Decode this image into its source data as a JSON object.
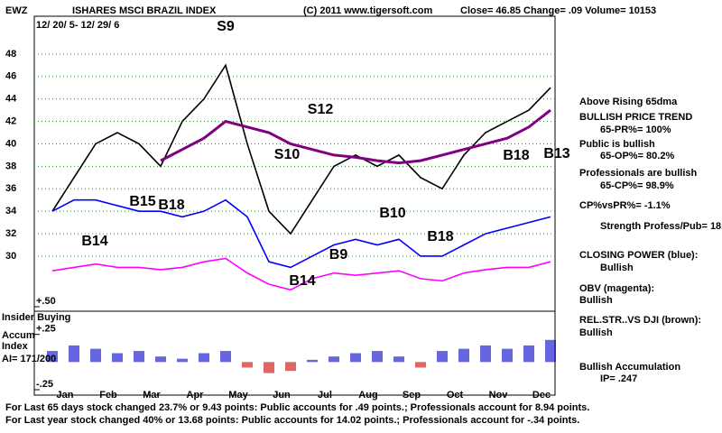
{
  "chart_data": {
    "type": "line",
    "symbol": "EWZ",
    "title": "ISHARES MSCI BRAZIL INDEX",
    "subtitle": "12/ 20/ 5- 12/ 29/ 6",
    "copyright": "(C) 2011 www.tigersoft.com",
    "quote": "Close=  46.85  Change= .09 Volume= 10153",
    "categories": [
      "Jan",
      null,
      "Feb",
      null,
      "Mar",
      null,
      "Apr",
      null,
      "May",
      null,
      "Jun",
      null,
      "Jul",
      null,
      "Aug",
      null,
      "Sep",
      null,
      "Oct",
      null,
      "Nov",
      null,
      "Dec",
      null
    ],
    "ylim": [
      25.5,
      51.2
    ],
    "yticks": [
      30,
      32,
      34,
      36,
      38,
      40,
      42,
      44,
      46,
      48
    ],
    "y2lim": [
      -0.25,
      0.5
    ],
    "y2ticks": [
      {
        "value": 0.5,
        "label": "+.50"
      },
      {
        "value": 0.25,
        "label": "+.25"
      },
      {
        "value": -0.25,
        "label": "-.25"
      }
    ],
    "grid": true,
    "series": [
      {
        "name": "Price",
        "color": "#000000",
        "values": [
          34,
          37,
          40,
          41,
          40,
          38,
          42,
          44,
          47,
          40,
          34,
          32,
          35,
          38,
          39,
          38,
          39,
          37,
          36,
          39,
          41,
          42,
          43,
          45
        ]
      },
      {
        "name": "65dma",
        "color": "#800080",
        "values": [
          null,
          null,
          null,
          null,
          null,
          38.5,
          39.5,
          40.5,
          42,
          41.5,
          41,
          40,
          39.5,
          39,
          38.8,
          38.5,
          38.3,
          38.5,
          39,
          39.5,
          40,
          40.5,
          41.5,
          43
        ]
      },
      {
        "name": "Closing Power",
        "color": "#0000ff",
        "values": [
          34,
          35,
          35,
          34.5,
          34,
          34,
          33.5,
          34,
          35,
          33.5,
          29.5,
          29,
          30,
          31,
          31.5,
          31,
          31.5,
          30,
          30,
          31,
          32,
          32.5,
          33,
          33.5
        ]
      },
      {
        "name": "OBV",
        "color": "#ff00ff",
        "values": [
          28.7,
          29,
          29.3,
          29,
          29,
          28.8,
          29,
          29.5,
          29.8,
          28.5,
          27.5,
          27,
          28,
          28.5,
          28.3,
          28.5,
          28.7,
          28,
          27.8,
          28.5,
          28.8,
          29,
          29,
          29.5
        ]
      },
      {
        "name": "Accum",
        "color": "#0000cc",
        "axis": "y2",
        "values": [
          0.1,
          0.15,
          0.12,
          0.08,
          0.1,
          0.05,
          0.03,
          0.08,
          0.1,
          -0.05,
          -0.1,
          -0.08,
          0.02,
          0.05,
          0.08,
          0.1,
          0.05,
          -0.05,
          0.1,
          0.12,
          0.15,
          0.12,
          0.15,
          0.2
        ]
      }
    ],
    "annotations": [
      "S9",
      "S12",
      "S10",
      "B15",
      "B18",
      "B14",
      "B9",
      "B14",
      "B10",
      "B18",
      "B18",
      "B13"
    ],
    "panel_labels": [
      "Insider Buying",
      "Accum",
      "Index",
      "AI= 171/200"
    ],
    "side_notes": [
      "Above Rising 65dma",
      "BULLISH PRICE TREND",
      "65-PR%= 100%",
      "Public is bullish",
      "65-OP%= 80.2%",
      "Professionals are bullish",
      "65-CP%= 98.9%",
      "CP%vsPR%= -1.1%",
      "Strength Profess/Pub= 18.2",
      "CLOSING POWER (blue):",
      "Bullish",
      "OBV (magenta):",
      "Bullish",
      "REL.STR..VS DJI (brown):",
      "Bullish",
      "Bullish Accumulation",
      "IP= .247"
    ],
    "footer": [
      "For Last 65 days stock changed  23.7% or  9.43 points:  Public accounts for  .49 points.;  Professionals account for  8.94 points.",
      "For Last year stock changed  40% or  13.68 points:  Public accounts for  14.02 points.;  Professionals account for -.34 points."
    ]
  }
}
